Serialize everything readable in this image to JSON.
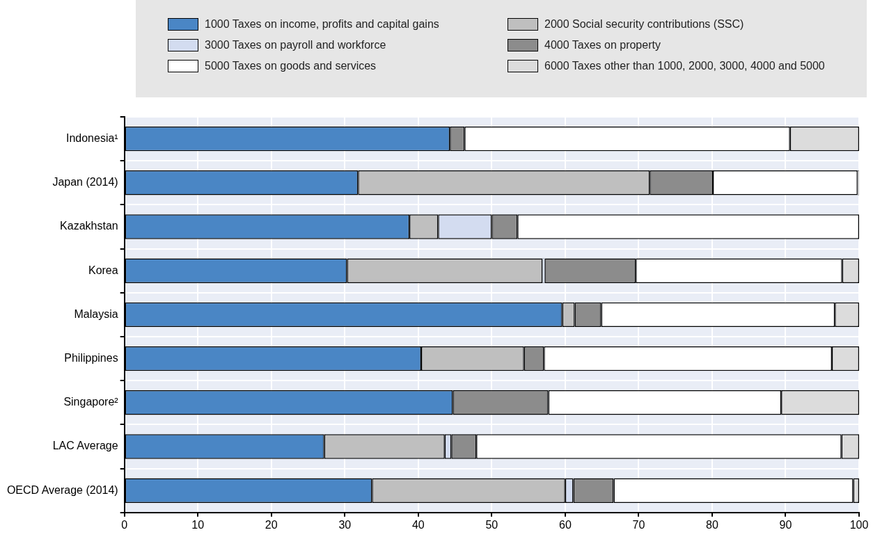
{
  "chart_data": {
    "type": "bar",
    "orientation": "horizontal",
    "stacked": true,
    "legend": "top",
    "grid": true,
    "categories": [
      "Indonesia¹",
      "Japan (2014)",
      "Kazakhstan",
      "Korea",
      "Malaysia",
      "Philippines",
      "Singapore²",
      "LAC Average",
      "OECD Average (2014)"
    ],
    "xlim": [
      0,
      100
    ],
    "xticks": [
      0,
      10,
      20,
      30,
      40,
      50,
      60,
      70,
      80,
      90,
      100
    ],
    "series": [
      {
        "name": "1000 Taxes on income, profits and capital gains",
        "color": "#4a86c5",
        "values": [
          44.3,
          31.8,
          38.8,
          30.3,
          59.6,
          40.4,
          44.7,
          27.2,
          33.7
        ]
      },
      {
        "name": "2000 Social security contributions (SSC)",
        "color": "#bfbfbf",
        "values": [
          null,
          39.7,
          3.9,
          26.6,
          1.7,
          14.0,
          null,
          16.4,
          26.3
        ]
      },
      {
        "name": "3000 Taxes on payroll and workforce",
        "color": "#d3dcf0",
        "values": [
          null,
          null,
          7.3,
          0.3,
          null,
          null,
          null,
          0.9,
          1.1
        ]
      },
      {
        "name": "4000 Taxes on property",
        "color": "#8c8c8c",
        "values": [
          2.0,
          8.6,
          3.5,
          12.4,
          3.6,
          2.7,
          13.0,
          3.4,
          5.5
        ]
      },
      {
        "name": "5000 Taxes on goods and services",
        "color": "#ffffff",
        "values": [
          44.3,
          19.7,
          46.5,
          28.1,
          31.8,
          39.2,
          31.7,
          49.7,
          32.6
        ]
      },
      {
        "name": "6000 Taxes other than 1000, 2000, 3000, 4000 and 5000",
        "color": "#dcdcdc",
        "values": [
          9.4,
          0.2,
          null,
          2.3,
          3.3,
          3.7,
          10.6,
          2.4,
          0.8
        ]
      }
    ]
  }
}
